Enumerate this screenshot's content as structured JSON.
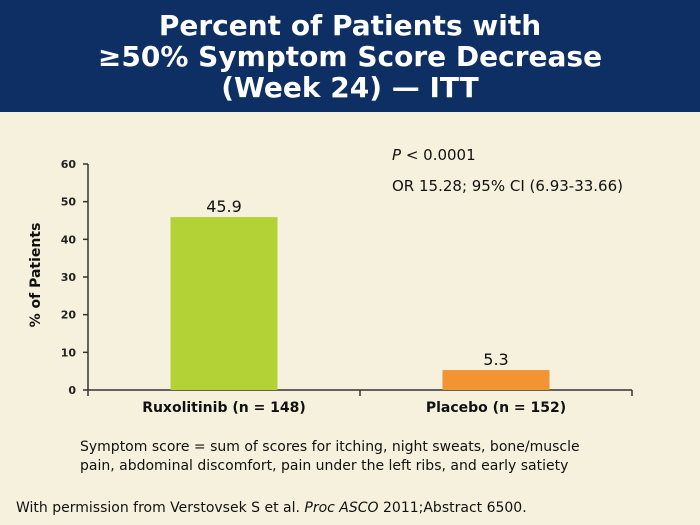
{
  "title": {
    "lines": [
      "Percent of Patients with",
      "≥50% Symptom Score Decrease",
      "(Week 24) — ITT"
    ]
  },
  "stats": {
    "p_italic": "P",
    "p_value": " < 0.0001",
    "or_line": "OR 15.28; 95% CI (6.93-33.66)"
  },
  "footnote": {
    "line1": "Symptom score = sum of scores for itching, night sweats, bone/muscle",
    "line2": "pain, abdominal discomfort, pain under the left ribs, and early satiety"
  },
  "source": {
    "prefix": "With permission from Verstovsek S et al. ",
    "journal": "Proc ASCO",
    "suffix": " 2011;Abstract 6500."
  },
  "colors": {
    "title_bg": "#0d2f63",
    "background": "#f6f1dc",
    "ruxolitinib": "#b2d235",
    "placebo": "#f39433"
  },
  "chart_data": {
    "type": "bar",
    "categories": [
      "Ruxolitinib (n = 148)",
      "Placebo (n = 152)"
    ],
    "values": [
      45.9,
      5.3
    ],
    "data_labels": [
      "45.9",
      "5.3"
    ],
    "ylabel": "% of Patients",
    "ylim": [
      0,
      60
    ],
    "yticks": [
      0,
      10,
      20,
      30,
      40,
      50,
      60
    ],
    "grid": false,
    "legend": "none"
  }
}
